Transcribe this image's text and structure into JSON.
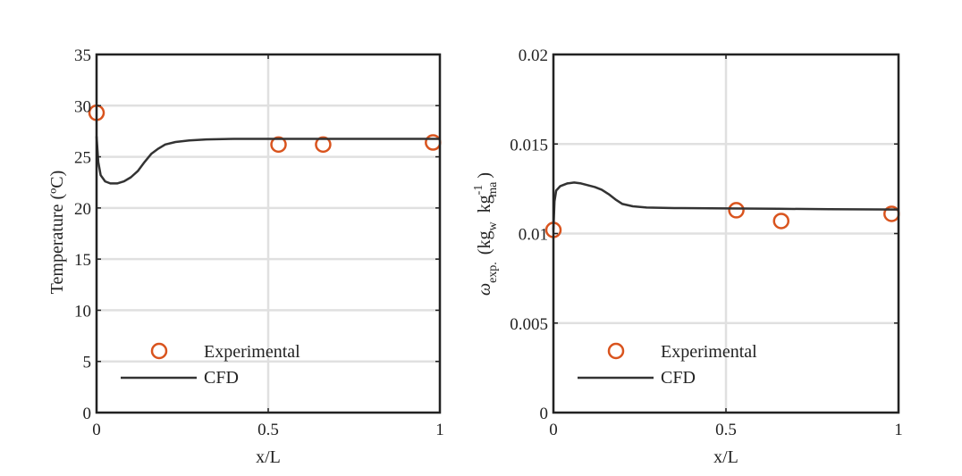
{
  "chart_data": [
    {
      "type": "line",
      "xlabel": "x/L",
      "ylabel": "Temperature (ºC)",
      "xlim": [
        0,
        1
      ],
      "ylim": [
        0,
        35
      ],
      "xticks": [
        "0",
        "0.5",
        "1"
      ],
      "yticks": [
        "0",
        "5",
        "10",
        "15",
        "20",
        "25",
        "30",
        "35"
      ],
      "grid": true,
      "legend": {
        "placement": "bottom-left",
        "entries": [
          "Experimental",
          "CFD"
        ]
      },
      "series": [
        {
          "name": "Experimental",
          "style": "markers",
          "color": "#d9541e",
          "x": [
            0.0,
            0.53,
            0.66,
            0.98
          ],
          "y": [
            29.3,
            26.2,
            26.2,
            26.4
          ]
        },
        {
          "name": "CFD",
          "style": "line",
          "color": "#333333",
          "x": [
            0.0,
            0.005,
            0.012,
            0.025,
            0.04,
            0.06,
            0.08,
            0.1,
            0.12,
            0.14,
            0.16,
            0.18,
            0.2,
            0.23,
            0.27,
            0.32,
            0.4,
            0.5,
            0.6,
            0.7,
            0.8,
            0.9,
            1.0
          ],
          "y": [
            27.0,
            24.5,
            23.2,
            22.6,
            22.4,
            22.4,
            22.6,
            23.0,
            23.6,
            24.5,
            25.3,
            25.8,
            26.2,
            26.45,
            26.6,
            26.7,
            26.75,
            26.75,
            26.75,
            26.75,
            26.75,
            26.75,
            26.75
          ]
        }
      ]
    },
    {
      "type": "line",
      "xlabel": "x/L",
      "ylabel": {
        "symbol": "ω",
        "symbol_sub": "exp.",
        "paren_open": "(",
        "kg1": "kg",
        "kg1_sub": "w",
        "kg2": "kg",
        "kg2_sup": "-1",
        "kg2_sub": "ma",
        "paren_close": ")"
      },
      "xlim": [
        0,
        1
      ],
      "ylim": [
        0,
        0.02
      ],
      "xticks": [
        "0",
        "0.5",
        "1"
      ],
      "yticks": [
        "0",
        "0.005",
        "0.01",
        "0.015",
        "0.02"
      ],
      "grid": true,
      "legend": {
        "placement": "bottom-left",
        "entries": [
          "Experimental",
          "CFD"
        ]
      },
      "series": [
        {
          "name": "Experimental",
          "style": "markers",
          "color": "#d9541e",
          "x": [
            0.0,
            0.53,
            0.66,
            0.98
          ],
          "y": [
            0.0102,
            0.0113,
            0.0107,
            0.0111
          ]
        },
        {
          "name": "CFD",
          "style": "line",
          "color": "#333333",
          "x": [
            0.0,
            0.003,
            0.008,
            0.02,
            0.04,
            0.06,
            0.08,
            0.1,
            0.12,
            0.14,
            0.16,
            0.18,
            0.2,
            0.23,
            0.27,
            0.35,
            0.5,
            0.65,
            0.8,
            1.0
          ],
          "y": [
            0.0102,
            0.0118,
            0.0124,
            0.01265,
            0.0128,
            0.01285,
            0.0128,
            0.0127,
            0.0126,
            0.01245,
            0.0122,
            0.0119,
            0.01165,
            0.01152,
            0.01145,
            0.01142,
            0.0114,
            0.01138,
            0.01136,
            0.01134
          ]
        }
      ]
    }
  ]
}
